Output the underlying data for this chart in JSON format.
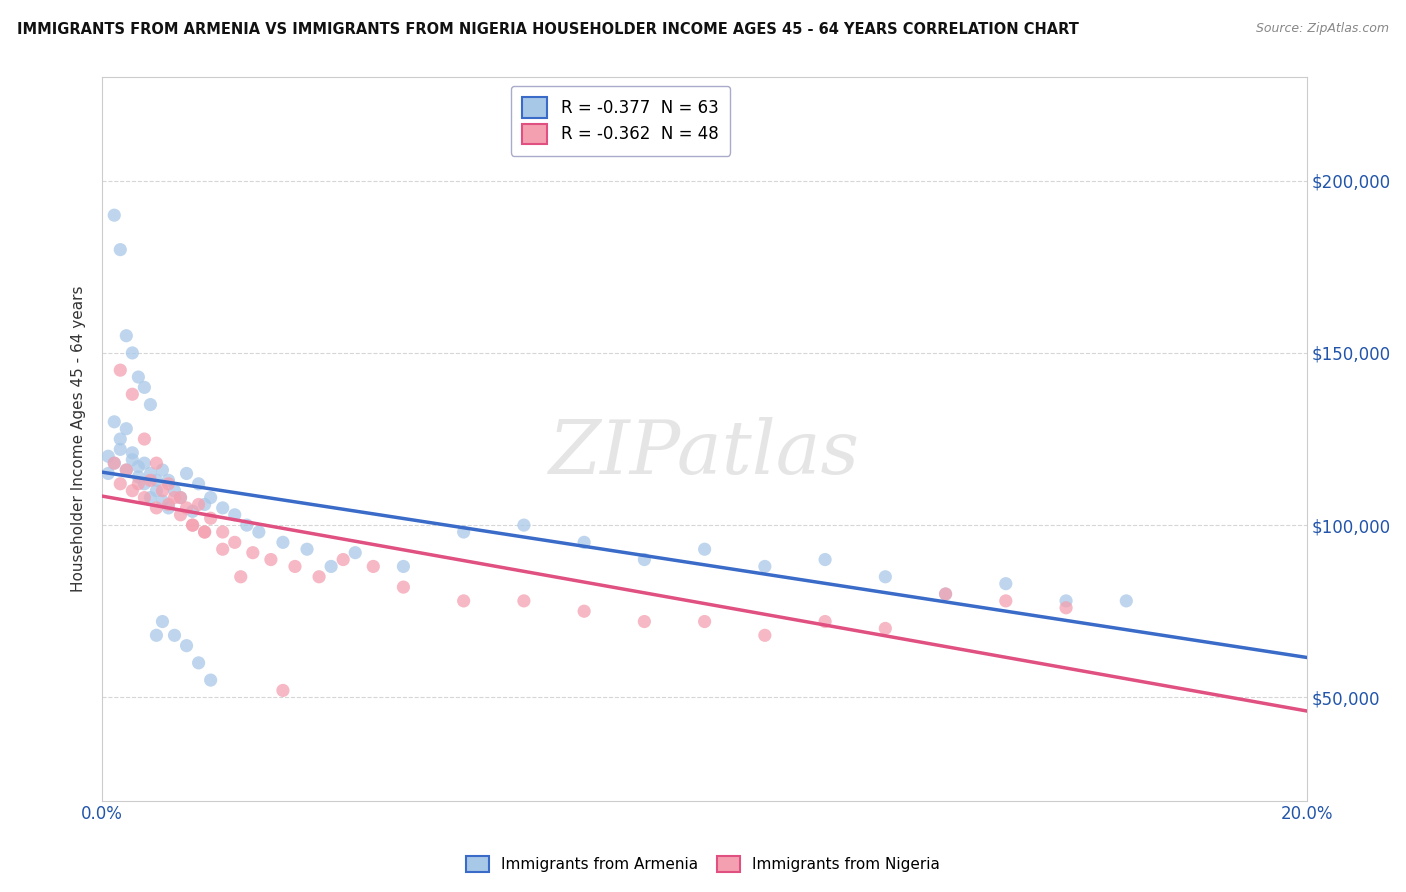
{
  "title": "IMMIGRANTS FROM ARMENIA VS IMMIGRANTS FROM NIGERIA HOUSEHOLDER INCOME AGES 45 - 64 YEARS CORRELATION CHART",
  "source": "Source: ZipAtlas.com",
  "ylabel": "Householder Income Ages 45 - 64 years",
  "xlim": [
    0.0,
    0.2
  ],
  "ylim": [
    20000,
    230000
  ],
  "xticks": [
    0.0,
    0.02,
    0.04,
    0.06,
    0.08,
    0.1,
    0.12,
    0.14,
    0.16,
    0.18,
    0.2
  ],
  "xticklabels": [
    "0.0%",
    "",
    "",
    "",
    "",
    "",
    "",
    "",
    "",
    "",
    "20.0%"
  ],
  "yticks": [
    50000,
    100000,
    150000,
    200000
  ],
  "yticklabels": [
    "$50,000",
    "$100,000",
    "$150,000",
    "$200,000"
  ],
  "legend1_label": "R = -0.377  N = 63",
  "legend2_label": "R = -0.362  N = 48",
  "armenia_color": "#a8c8e8",
  "nigeria_color": "#f4a0b0",
  "armenia_line_color": "#3a6bc8",
  "nigeria_line_color": "#e05080",
  "background_color": "#ffffff",
  "grid_color": "#cccccc",
  "watermark": "ZIPatlas",
  "armenia_scatter_x": [
    0.001,
    0.001,
    0.002,
    0.002,
    0.003,
    0.003,
    0.004,
    0.004,
    0.005,
    0.005,
    0.006,
    0.006,
    0.007,
    0.007,
    0.008,
    0.008,
    0.009,
    0.009,
    0.01,
    0.01,
    0.011,
    0.011,
    0.012,
    0.013,
    0.014,
    0.015,
    0.016,
    0.017,
    0.018,
    0.02,
    0.022,
    0.024,
    0.026,
    0.03,
    0.034,
    0.038,
    0.042,
    0.05,
    0.06,
    0.07,
    0.08,
    0.09,
    0.1,
    0.11,
    0.12,
    0.13,
    0.14,
    0.15,
    0.16,
    0.17,
    0.002,
    0.003,
    0.004,
    0.005,
    0.006,
    0.007,
    0.008,
    0.009,
    0.01,
    0.012,
    0.014,
    0.016,
    0.018
  ],
  "armenia_scatter_y": [
    120000,
    115000,
    130000,
    118000,
    125000,
    122000,
    128000,
    116000,
    119000,
    121000,
    114000,
    117000,
    112000,
    118000,
    115000,
    108000,
    113000,
    110000,
    116000,
    107000,
    113000,
    105000,
    110000,
    108000,
    115000,
    104000,
    112000,
    106000,
    108000,
    105000,
    103000,
    100000,
    98000,
    95000,
    93000,
    88000,
    92000,
    88000,
    98000,
    100000,
    95000,
    90000,
    93000,
    88000,
    90000,
    85000,
    80000,
    83000,
    78000,
    78000,
    190000,
    180000,
    155000,
    150000,
    143000,
    140000,
    135000,
    68000,
    72000,
    68000,
    65000,
    60000,
    55000
  ],
  "nigeria_scatter_x": [
    0.002,
    0.003,
    0.004,
    0.005,
    0.006,
    0.007,
    0.008,
    0.009,
    0.01,
    0.011,
    0.012,
    0.013,
    0.014,
    0.015,
    0.016,
    0.017,
    0.018,
    0.02,
    0.022,
    0.025,
    0.028,
    0.032,
    0.036,
    0.04,
    0.045,
    0.05,
    0.06,
    0.07,
    0.08,
    0.09,
    0.1,
    0.11,
    0.12,
    0.13,
    0.14,
    0.15,
    0.16,
    0.003,
    0.005,
    0.007,
    0.009,
    0.011,
    0.013,
    0.015,
    0.017,
    0.02,
    0.023,
    0.03
  ],
  "nigeria_scatter_y": [
    118000,
    112000,
    116000,
    110000,
    112000,
    108000,
    113000,
    105000,
    110000,
    106000,
    108000,
    103000,
    105000,
    100000,
    106000,
    98000,
    102000,
    98000,
    95000,
    92000,
    90000,
    88000,
    85000,
    90000,
    88000,
    82000,
    78000,
    78000,
    75000,
    72000,
    72000,
    68000,
    72000,
    70000,
    80000,
    78000,
    76000,
    145000,
    138000,
    125000,
    118000,
    112000,
    108000,
    100000,
    98000,
    93000,
    85000,
    52000
  ]
}
